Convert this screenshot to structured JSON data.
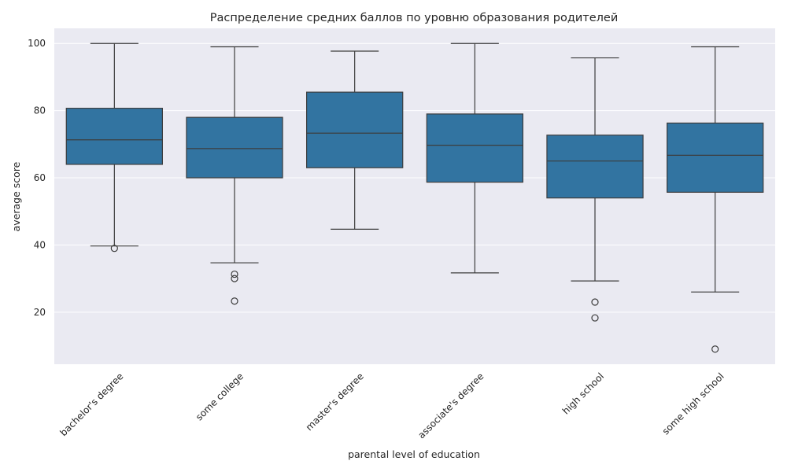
{
  "chart_data": {
    "type": "boxplot",
    "title": "Распределение средних баллов по уровню образования родителей",
    "xlabel": "parental level of education",
    "ylabel": "average score",
    "ylim": [
      4.5,
      104.5
    ],
    "yticks": [
      20,
      40,
      60,
      80,
      100
    ],
    "grid": true,
    "colors": {
      "box": "#3274a1",
      "line": "#3d3d3d",
      "background": "#eaeaf2",
      "grid": "#ffffff"
    },
    "categories": [
      "bachelor's degree",
      "some college",
      "master's degree",
      "associate's degree",
      "high school",
      "some high school"
    ],
    "boxes": [
      {
        "category": "bachelor's degree",
        "whislo": 39.7,
        "q1": 64.0,
        "med": 71.3,
        "q3": 80.7,
        "whishi": 100.0,
        "fliers": [
          39.0
        ]
      },
      {
        "category": "some college",
        "whislo": 34.7,
        "q1": 60.0,
        "med": 68.7,
        "q3": 78.0,
        "whishi": 99.0,
        "fliers": [
          31.3,
          30.0,
          23.3
        ]
      },
      {
        "category": "master's degree",
        "whislo": 44.7,
        "q1": 63.0,
        "med": 73.3,
        "q3": 85.5,
        "whishi": 97.7,
        "fliers": []
      },
      {
        "category": "associate's degree",
        "whislo": 31.7,
        "q1": 58.7,
        "med": 69.7,
        "q3": 79.0,
        "whishi": 100.0,
        "fliers": []
      },
      {
        "category": "high school",
        "whislo": 29.3,
        "q1": 54.0,
        "med": 65.0,
        "q3": 72.7,
        "whishi": 95.7,
        "fliers": [
          23.0,
          18.3
        ]
      },
      {
        "category": "some high school",
        "whislo": 26.0,
        "q1": 55.7,
        "med": 66.7,
        "q3": 76.3,
        "whishi": 99.0,
        "fliers": [
          9.0
        ]
      }
    ]
  }
}
